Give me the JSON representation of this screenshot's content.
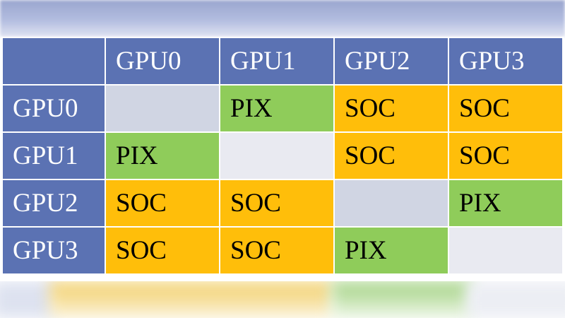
{
  "colors": {
    "header_blue": "#5b72b3",
    "pix_green": "#8fcc5a",
    "soc_orange": "#ffbe0a",
    "empty_gray": "#d0d5e3",
    "empty_light": "#e9eaf1"
  },
  "matrix": {
    "corner": "",
    "columns": [
      "GPU0",
      "GPU1",
      "GPU2",
      "GPU3"
    ],
    "rows": [
      {
        "label": "GPU0",
        "cells": [
          "",
          "PIX",
          "SOC",
          "SOC"
        ]
      },
      {
        "label": "GPU1",
        "cells": [
          "PIX",
          "",
          "SOC",
          "SOC"
        ]
      },
      {
        "label": "GPU2",
        "cells": [
          "SOC",
          "SOC",
          "",
          "PIX"
        ]
      },
      {
        "label": "GPU3",
        "cells": [
          "SOC",
          "SOC",
          "PIX",
          ""
        ]
      }
    ]
  }
}
